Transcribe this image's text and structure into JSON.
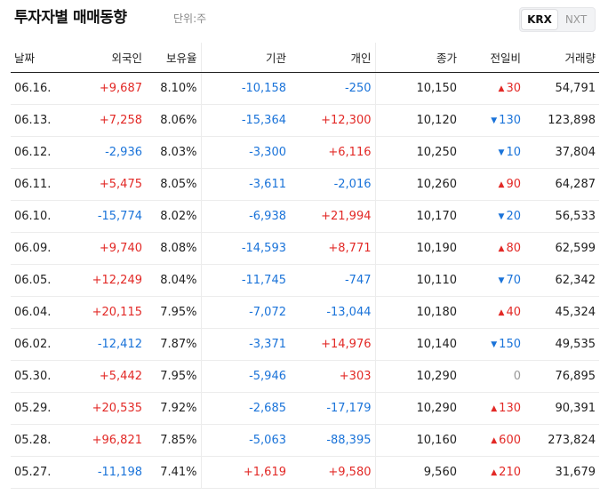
{
  "header": {
    "title": "투자자별 매매동향",
    "unit": "단위:주",
    "tabs": [
      {
        "label": "KRX",
        "selected": true
      },
      {
        "label": "NXT",
        "selected": false
      }
    ]
  },
  "table": {
    "columns": {
      "date": "날짜",
      "foreign": "외국인",
      "holding": "보유율",
      "institution": "기관",
      "individual": "개인",
      "close": "종가",
      "change": "전일비",
      "volume": "거래량"
    },
    "rows": [
      {
        "date": "06.16.",
        "foreign": "+9,687",
        "holding": "8.10%",
        "institution": "-10,158",
        "individual": "-250",
        "close": "10,150",
        "change": "30",
        "dir": "up",
        "volume": "54,791"
      },
      {
        "date": "06.13.",
        "foreign": "+7,258",
        "holding": "8.06%",
        "institution": "-15,364",
        "individual": "+12,300",
        "close": "10,120",
        "change": "130",
        "dir": "down",
        "volume": "123,898"
      },
      {
        "date": "06.12.",
        "foreign": "-2,936",
        "holding": "8.03%",
        "institution": "-3,300",
        "individual": "+6,116",
        "close": "10,250",
        "change": "10",
        "dir": "down",
        "volume": "37,804"
      },
      {
        "date": "06.11.",
        "foreign": "+5,475",
        "holding": "8.05%",
        "institution": "-3,611",
        "individual": "-2,016",
        "close": "10,260",
        "change": "90",
        "dir": "up",
        "volume": "64,287"
      },
      {
        "date": "06.10.",
        "foreign": "-15,774",
        "holding": "8.02%",
        "institution": "-6,938",
        "individual": "+21,994",
        "close": "10,170",
        "change": "20",
        "dir": "down",
        "volume": "56,533"
      },
      {
        "date": "06.09.",
        "foreign": "+9,740",
        "holding": "8.08%",
        "institution": "-14,593",
        "individual": "+8,771",
        "close": "10,190",
        "change": "80",
        "dir": "up",
        "volume": "62,599"
      },
      {
        "date": "06.05.",
        "foreign": "+12,249",
        "holding": "8.04%",
        "institution": "-11,745",
        "individual": "-747",
        "close": "10,110",
        "change": "70",
        "dir": "down",
        "volume": "62,342"
      },
      {
        "date": "06.04.",
        "foreign": "+20,115",
        "holding": "7.95%",
        "institution": "-7,072",
        "individual": "-13,044",
        "close": "10,180",
        "change": "40",
        "dir": "up",
        "volume": "45,324"
      },
      {
        "date": "06.02.",
        "foreign": "-12,412",
        "holding": "7.87%",
        "institution": "-3,371",
        "individual": "+14,976",
        "close": "10,140",
        "change": "150",
        "dir": "down",
        "volume": "49,535"
      },
      {
        "date": "05.30.",
        "foreign": "+5,442",
        "holding": "7.95%",
        "institution": "-5,946",
        "individual": "+303",
        "close": "10,290",
        "change": "0",
        "dir": "flat",
        "volume": "76,895"
      },
      {
        "date": "05.29.",
        "foreign": "+20,535",
        "holding": "7.92%",
        "institution": "-2,685",
        "individual": "-17,179",
        "close": "10,290",
        "change": "130",
        "dir": "up",
        "volume": "90,391"
      },
      {
        "date": "05.28.",
        "foreign": "+96,821",
        "holding": "7.85%",
        "institution": "-5,063",
        "individual": "-88,395",
        "close": "10,160",
        "change": "600",
        "dir": "up",
        "volume": "273,824"
      },
      {
        "date": "05.27.",
        "foreign": "-11,198",
        "holding": "7.41%",
        "institution": "+1,619",
        "individual": "+9,580",
        "close": "9,560",
        "change": "210",
        "dir": "up",
        "volume": "31,679"
      }
    ]
  },
  "colors": {
    "up": "#e22926",
    "down": "#1a73d9",
    "flat": "#999999"
  },
  "icons": {
    "up": "triangle-up-icon",
    "down": "triangle-down-icon"
  }
}
